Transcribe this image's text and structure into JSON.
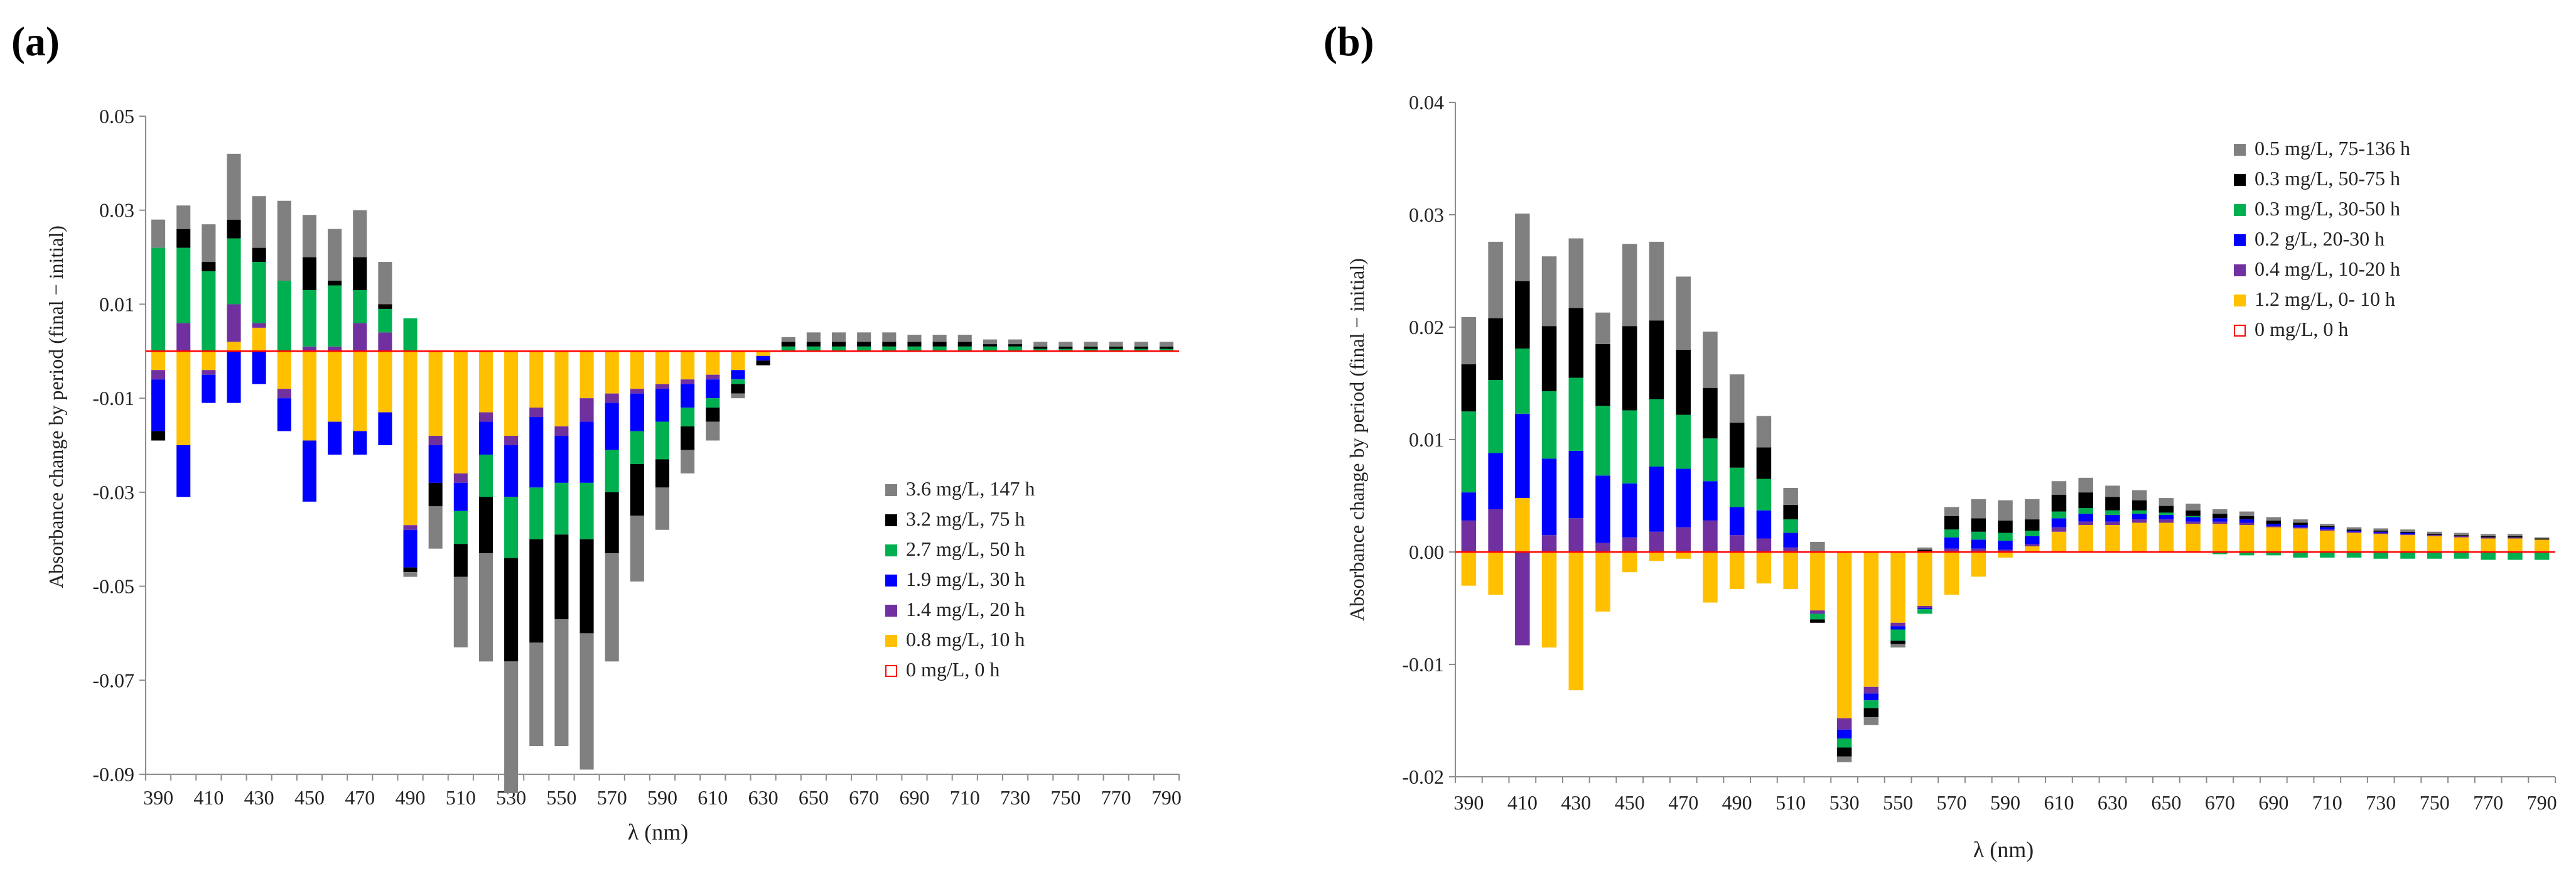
{
  "panels": [
    {
      "label": "(a)",
      "chart_data": {
        "type": "bar",
        "stacked": true,
        "x_label": "λ (nm)",
        "y_label": "Absorbance change by period (final − initial)",
        "ylim": [
          -0.09,
          0.05
        ],
        "y_ticks": [
          "0.05",
          "0.03",
          "0.01",
          "-0.01",
          "-0.03",
          "-0.05",
          "-0.07",
          "-0.09"
        ],
        "y_tick_values": [
          0.05,
          0.03,
          0.01,
          -0.01,
          -0.03,
          -0.05,
          -0.07,
          -0.09
        ],
        "x_tick_labels": [
          "390",
          "410",
          "430",
          "450",
          "470",
          "490",
          "510",
          "530",
          "550",
          "570",
          "590",
          "610",
          "630",
          "650",
          "670",
          "690",
          "710",
          "730",
          "750",
          "770",
          "790"
        ],
        "categories": [
          390,
          400,
          410,
          420,
          430,
          440,
          450,
          460,
          470,
          480,
          490,
          500,
          510,
          520,
          530,
          540,
          550,
          560,
          570,
          580,
          590,
          600,
          610,
          620,
          630,
          640,
          650,
          660,
          670,
          680,
          690,
          700,
          710,
          720,
          730,
          740,
          750,
          760,
          770,
          780,
          790
        ],
        "legend_position": "center-right",
        "legend": [
          {
            "label": "3.6 mg/L, 147 h",
            "color": "#808080"
          },
          {
            "label": "3.2 mg/L, 75 h",
            "color": "#000000"
          },
          {
            "label": "2.7 mg/L, 50 h",
            "color": "#00b050"
          },
          {
            "label": "1.9 mg/L, 30 h",
            "color": "#0000ff"
          },
          {
            "label": "1.4 mg/L, 20 h",
            "color": "#7030a0"
          },
          {
            "label": "0.8 mg/L, 10 h",
            "color": "#ffc000"
          },
          {
            "label": "0 mg/L, 0 h",
            "color": "#ff0000",
            "marker": "open-square"
          }
        ],
        "series": [
          {
            "name": "0.8 mg/L, 10 h",
            "color": "#ffc000",
            "values": [
              -0.004,
              -0.02,
              -0.004,
              0.002,
              0.005,
              -0.008,
              -0.019,
              -0.015,
              -0.017,
              -0.013,
              -0.037,
              -0.018,
              -0.026,
              -0.013,
              -0.018,
              -0.012,
              -0.016,
              -0.01,
              -0.009,
              -0.008,
              -0.007,
              -0.006,
              -0.005,
              -0.004,
              -0.001,
              0,
              0,
              0,
              0,
              0,
              0,
              0,
              0,
              0,
              0,
              0,
              0,
              0,
              0,
              0,
              0
            ]
          },
          {
            "name": "1.4 mg/L, 20 h",
            "color": "#7030a0",
            "values": [
              -0.002,
              0.006,
              -0.001,
              0.008,
              0.001,
              -0.002,
              0.001,
              0.001,
              0.006,
              0.004,
              -0.001,
              -0.002,
              -0.002,
              -0.002,
              -0.002,
              -0.002,
              -0.002,
              -0.005,
              -0.002,
              -0.001,
              -0.001,
              -0.001,
              -0.001,
              0,
              0,
              0,
              0,
              0,
              0,
              0,
              0,
              0,
              0,
              0,
              0,
              0,
              0,
              0,
              0,
              0,
              0
            ]
          },
          {
            "name": "1.9 mg/L, 30 h",
            "color": "#0000ff",
            "values": [
              -0.011,
              -0.011,
              -0.006,
              -0.011,
              -0.007,
              -0.007,
              -0.013,
              -0.007,
              -0.005,
              -0.007,
              -0.008,
              -0.008,
              -0.006,
              -0.007,
              -0.011,
              -0.015,
              -0.01,
              -0.013,
              -0.01,
              -0.008,
              -0.007,
              -0.005,
              -0.004,
              -0.002,
              -0.001,
              0,
              0,
              0,
              0,
              0,
              0,
              0,
              0,
              0,
              0,
              0,
              0,
              0,
              0,
              0,
              0
            ]
          },
          {
            "name": "2.7 mg/L, 50 h",
            "color": "#00b050",
            "values": [
              0.022,
              0.016,
              0.017,
              0.014,
              0.013,
              0.015,
              0.012,
              0.013,
              0.007,
              0.005,
              0.007,
              0,
              -0.007,
              -0.009,
              -0.013,
              -0.011,
              -0.011,
              -0.012,
              -0.009,
              -0.007,
              -0.008,
              -0.004,
              -0.002,
              -0.001,
              0,
              0.001,
              0.001,
              0.001,
              0.001,
              0.001,
              0.001,
              0.001,
              0.001,
              0.001,
              0.001,
              0.0005,
              0.0005,
              0.0005,
              0.0005,
              0.0005,
              0.0005
            ]
          },
          {
            "name": "3.2 mg/L, 75 h",
            "color": "#000000",
            "values": [
              -0.002,
              0.004,
              0.002,
              0.004,
              0.003,
              0,
              0.007,
              0.001,
              0.007,
              0.001,
              -0.001,
              -0.005,
              -0.007,
              -0.012,
              -0.022,
              -0.022,
              -0.018,
              -0.02,
              -0.013,
              -0.011,
              -0.006,
              -0.005,
              -0.003,
              -0.002,
              -0.001,
              0.001,
              0.001,
              0.001,
              0.001,
              0.001,
              0.001,
              0.001,
              0.001,
              0.0005,
              0.0005,
              0.0005,
              0.0005,
              0.0005,
              0.0005,
              0.0005,
              0.0005
            ]
          },
          {
            "name": "3.6 mg/L, 147 h",
            "color": "#808080",
            "values": [
              0.006,
              0.005,
              0.008,
              0.014,
              0.011,
              0.017,
              0.009,
              0.011,
              0.01,
              0.009,
              -0.001,
              -0.009,
              -0.015,
              -0.023,
              -0.028,
              -0.022,
              -0.027,
              -0.029,
              -0.023,
              -0.014,
              -0.009,
              -0.005,
              -0.004,
              -0.001,
              0,
              0.001,
              0.002,
              0.002,
              0.002,
              0.002,
              0.0015,
              0.0015,
              0.0015,
              0.001,
              0.001,
              0.001,
              0.001,
              0.001,
              0.001,
              0.001,
              0.001
            ]
          }
        ]
      }
    },
    {
      "label": "(b)",
      "chart_data": {
        "type": "bar",
        "stacked": true,
        "x_label": "λ (nm)",
        "y_label": "Absorbance change by period (final − initial)",
        "ylim": [
          -0.02,
          0.04
        ],
        "y_ticks": [
          "0.04",
          "0.03",
          "0.02",
          "0.01",
          "0.00",
          "-0.01",
          "-0.02"
        ],
        "y_tick_values": [
          0.04,
          0.03,
          0.02,
          0.01,
          0.0,
          -0.01,
          -0.02
        ],
        "x_tick_labels": [
          "390",
          "410",
          "430",
          "450",
          "470",
          "490",
          "510",
          "530",
          "550",
          "570",
          "590",
          "610",
          "630",
          "650",
          "670",
          "690",
          "710",
          "730",
          "750",
          "770",
          "790"
        ],
        "categories": [
          390,
          400,
          410,
          420,
          430,
          440,
          450,
          460,
          470,
          480,
          490,
          500,
          510,
          520,
          530,
          540,
          550,
          560,
          570,
          580,
          590,
          600,
          610,
          620,
          630,
          640,
          650,
          660,
          670,
          680,
          690,
          700,
          710,
          720,
          730,
          740,
          750,
          760,
          770,
          780,
          790
        ],
        "legend_position": "top-right",
        "legend": [
          {
            "label": "0.5 mg/L, 75-136 h",
            "color": "#808080"
          },
          {
            "label": "0.3 mg/L, 50-75 h",
            "color": "#000000"
          },
          {
            "label": "0.3 mg/L, 30-50 h",
            "color": "#00b050"
          },
          {
            "label": "0.2 g/L, 20-30 h",
            "color": "#0000ff"
          },
          {
            "label": "0.4 mg/L, 10-20 h",
            "color": "#7030a0"
          },
          {
            "label": "1.2 mg/L, 0- 10 h",
            "color": "#ffc000"
          },
          {
            "label": "0 mg/L, 0 h",
            "color": "#ff0000",
            "marker": "open-square"
          }
        ],
        "series": [
          {
            "name": "1.2 mg/L, 0- 10 h",
            "color": "#ffc000",
            "values": [
              -0.003,
              -0.0038,
              0.0048,
              -0.0085,
              -0.0123,
              -0.0053,
              -0.0018,
              -0.0008,
              -0.0006,
              -0.0045,
              -0.0033,
              -0.0028,
              -0.0033,
              -0.0052,
              -0.0148,
              -0.012,
              -0.0063,
              -0.0048,
              -0.0038,
              -0.0022,
              -0.0005,
              0.0005,
              0.0018,
              0.0024,
              0.0024,
              0.0026,
              0.0026,
              0.0025,
              0.0025,
              0.0024,
              0.0022,
              0.0021,
              0.0019,
              0.0017,
              0.0016,
              0.0015,
              0.0014,
              0.0013,
              0.0012,
              0.0012,
              0.0011
            ]
          },
          {
            "name": "0.4 mg/L, 10-20 h",
            "color": "#7030a0",
            "values": [
              0.0028,
              0.0038,
              -0.0083,
              0.0015,
              0.003,
              0.0008,
              0.0013,
              0.0018,
              0.0022,
              0.0028,
              0.0015,
              0.0012,
              0.0004,
              -0.0003,
              -0.001,
              -0.0006,
              -0.0003,
              -0.0002,
              0.0003,
              0.0003,
              0.0002,
              0.0002,
              0.0004,
              0.0003,
              0.0003,
              0.0003,
              0.0003,
              0.0002,
              0.0002,
              0.0002,
              0.0001,
              0.0001,
              0.0001,
              0.0001,
              0.0001,
              0.0001,
              0.0001,
              0.0001,
              0.0001,
              0.0001,
              0
            ]
          },
          {
            "name": "0.2 g/L, 20-30 h",
            "color": "#0000ff",
            "values": [
              0.0025,
              0.005,
              0.0075,
              0.0068,
              0.006,
              0.006,
              0.0048,
              0.0058,
              0.0052,
              0.0035,
              0.0025,
              0.0025,
              0.0013,
              0,
              -0.0008,
              -0.0006,
              -0.0003,
              -0.0001,
              0.001,
              0.0008,
              0.0008,
              0.0007,
              0.0008,
              0.0007,
              0.0006,
              0.0005,
              0.0004,
              0.0004,
              0.0003,
              0.0003,
              0.0002,
              0.0002,
              0.0002,
              0.0001,
              0.0001,
              0.0001,
              0,
              0,
              0,
              0,
              0
            ]
          },
          {
            "name": "0.3 mg/L, 30-50 h",
            "color": "#00b050",
            "values": [
              0.0072,
              0.0065,
              0.0058,
              0.006,
              0.0065,
              0.0062,
              0.0065,
              0.006,
              0.0048,
              0.0038,
              0.0035,
              0.0028,
              0.0012,
              -0.0005,
              -0.0008,
              -0.0007,
              -0.001,
              -0.0004,
              0.0007,
              0.0007,
              0.0007,
              0.0005,
              0.0006,
              0.0005,
              0.0004,
              0.0003,
              0.0002,
              0.0001,
              -0.0002,
              -0.0003,
              -0.0003,
              -0.0005,
              -0.0005,
              -0.0005,
              -0.0006,
              -0.0006,
              -0.0006,
              -0.0006,
              -0.0007,
              -0.0007,
              -0.0007
            ]
          },
          {
            "name": "0.3 mg/L, 50-75 h",
            "color": "#000000",
            "values": [
              0.0042,
              0.0055,
              0.006,
              0.0058,
              0.0062,
              0.0055,
              0.0075,
              0.007,
              0.0058,
              0.0045,
              0.004,
              0.0028,
              0.0013,
              -0.0003,
              -0.0008,
              -0.0008,
              -0.0003,
              0.0002,
              0.0012,
              0.0012,
              0.0011,
              0.001,
              0.0015,
              0.0014,
              0.0012,
              0.0009,
              0.0006,
              0.0005,
              0.0004,
              0.0003,
              0.0003,
              0.0002,
              0.0001,
              0.0001,
              0.0001,
              0.0001,
              0.0001,
              0.0001,
              0.0001,
              0.0001,
              0.0001
            ]
          },
          {
            "name": "0.5 mg/L, 75-136 h",
            "color": "#808080",
            "values": [
              0.0042,
              0.0068,
              0.006,
              0.0062,
              0.0062,
              0.0028,
              0.0073,
              0.007,
              0.0065,
              0.005,
              0.0043,
              0.0028,
              0.0015,
              0.0009,
              -0.0005,
              -0.0007,
              -0.0003,
              0.0002,
              0.0008,
              0.0017,
              0.0018,
              0.0018,
              0.0012,
              0.0013,
              0.001,
              0.0009,
              0.0007,
              0.0006,
              0.0004,
              0.0004,
              0.0003,
              0.0003,
              0.0002,
              0.0002,
              0.0002,
              0.0002,
              0.0002,
              0.0002,
              0.0002,
              0.0002,
              0.0001
            ]
          }
        ]
      }
    }
  ]
}
